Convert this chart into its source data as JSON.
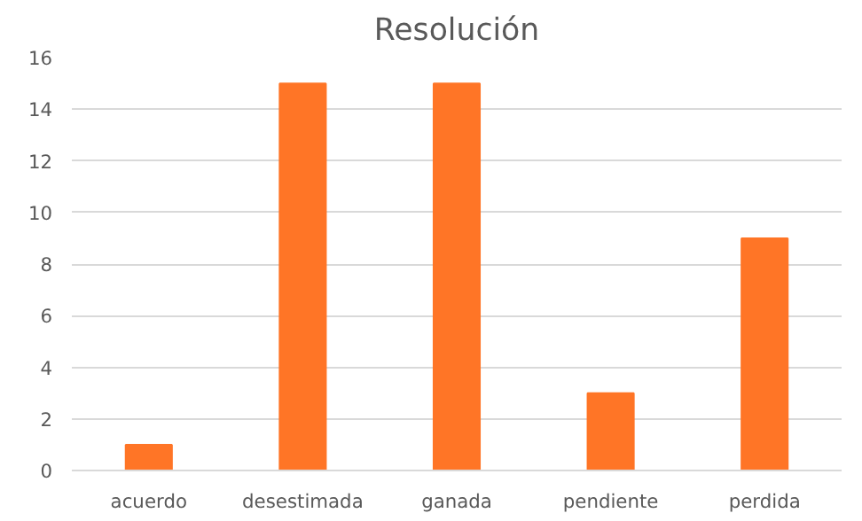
{
  "chart_data": {
    "type": "bar",
    "title": "Resolución",
    "categories": [
      "acuerdo",
      "desestimada",
      "ganada",
      "pendiente",
      "perdida"
    ],
    "values": [
      1,
      15,
      15,
      3,
      9
    ],
    "color": "#ff7526",
    "ylim": [
      0,
      16
    ],
    "yticks": [
      0,
      2,
      4,
      6,
      8,
      10,
      12,
      14,
      16
    ],
    "grid": "y"
  }
}
